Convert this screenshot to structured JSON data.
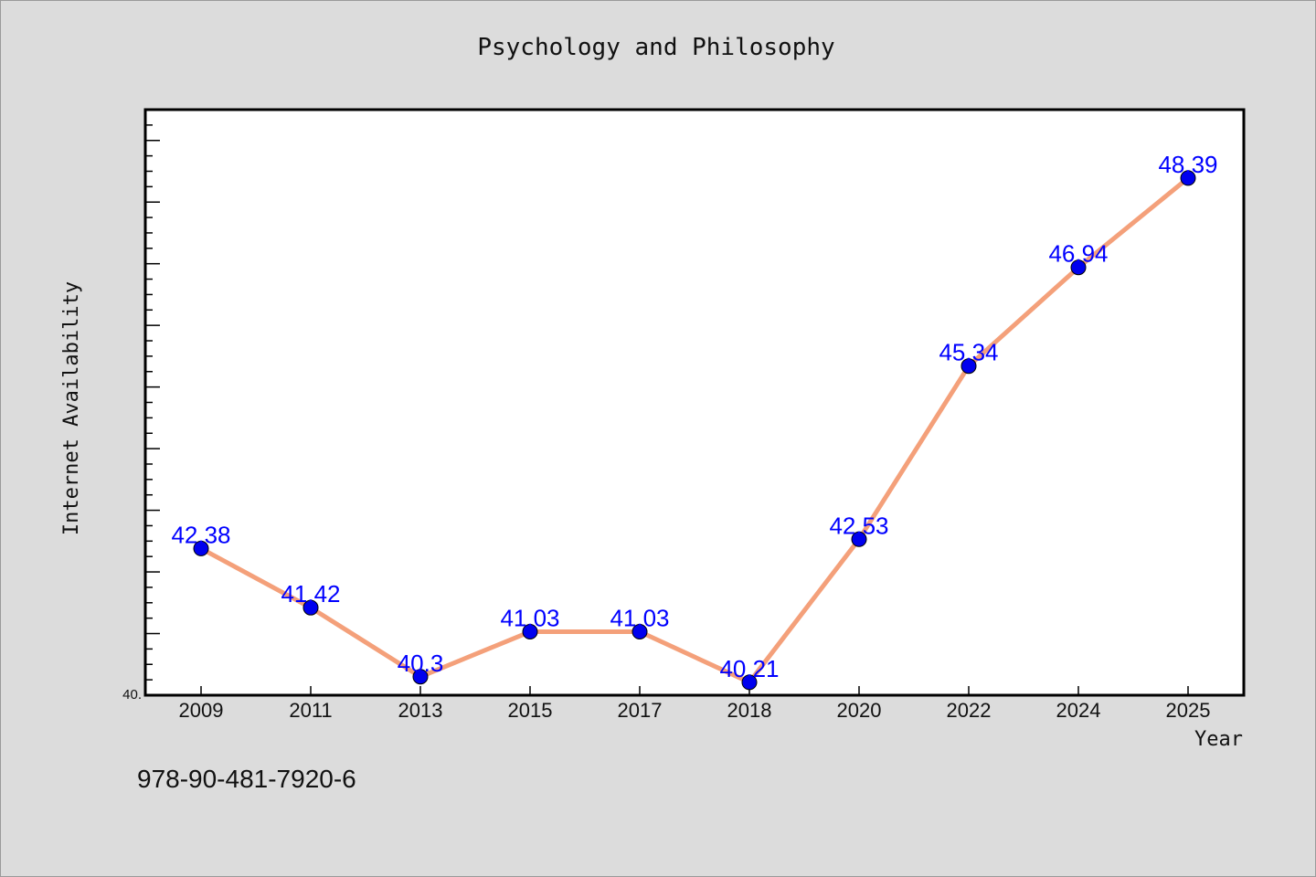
{
  "chart_data": {
    "type": "line",
    "title": "Psychology and Philosophy",
    "xlabel": "Year",
    "ylabel": "Internet Availability",
    "categories": [
      "2009",
      "2011",
      "2013",
      "2015",
      "2017",
      "2018",
      "2020",
      "2022",
      "2024",
      "2025"
    ],
    "series": [
      {
        "values": [
          42.38,
          41.42,
          40.3,
          41.03,
          41.03,
          40.21,
          42.53,
          45.34,
          46.94,
          48.39
        ],
        "labels": [
          "42.38",
          "41.42",
          "40.3",
          "41.03",
          "41.03",
          "40.21",
          "42.53",
          "45.34",
          "46.94",
          "48.39"
        ]
      }
    ],
    "y_tick_label": "40.",
    "ylim": [
      40.0,
      49.5
    ],
    "grid": false,
    "colors": {
      "line": "#f4a07a",
      "marker": "#0000ee",
      "label": "#0000ff",
      "background": "#dcdcdc",
      "plot": "#ffffff"
    }
  },
  "footer": {
    "isbn": "978-90-481-7920-6"
  }
}
